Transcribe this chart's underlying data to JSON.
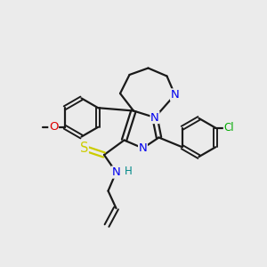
{
  "bg_color": "#ebebeb",
  "bond_color": "#1a1a1a",
  "bond_lw": 1.6,
  "atom_colors": {
    "N": "#0000ee",
    "O": "#dd0000",
    "S": "#cccc00",
    "Cl": "#00aa00",
    "H": "#008888",
    "C": "#1a1a1a"
  },
  "font_size": 8.5,
  "fig_size": [
    3.0,
    3.0
  ],
  "dpi": 100
}
